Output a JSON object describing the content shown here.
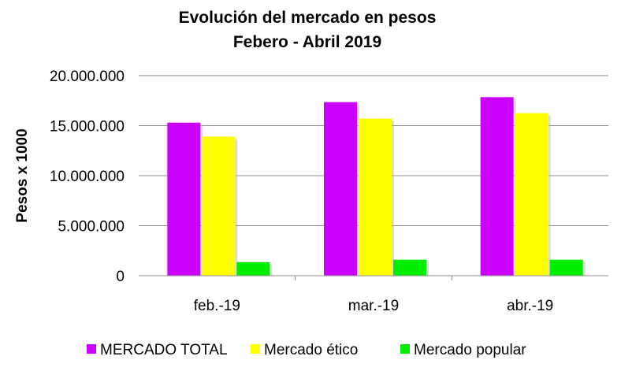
{
  "chart_data": {
    "type": "bar",
    "title_line1": "Evolución del mercado en pesos",
    "title_line2": "Febero - Abril 2019",
    "ylabel": "Pesos x 1000",
    "xlabel": "",
    "ylim": [
      0,
      20000000
    ],
    "yticks": [
      0,
      5000000,
      10000000,
      15000000,
      20000000
    ],
    "ytick_labels": [
      "0",
      "5.000.000",
      "10.000.000",
      "15.000.000",
      "20.000.000"
    ],
    "categories": [
      "feb.-19",
      "mar.-19",
      "abr.-19"
    ],
    "series": [
      {
        "name": "MERCADO TOTAL",
        "color": "#cc00ff",
        "values": [
          15300000,
          17350000,
          17850000
        ]
      },
      {
        "name": "Mercado ético",
        "color": "#ffff00",
        "values": [
          13900000,
          15700000,
          16250000
        ]
      },
      {
        "name": "Mercado popular",
        "color": "#00ee00",
        "values": [
          1350000,
          1600000,
          1600000
        ]
      }
    ],
    "grid": true,
    "legend_position": "bottom"
  }
}
